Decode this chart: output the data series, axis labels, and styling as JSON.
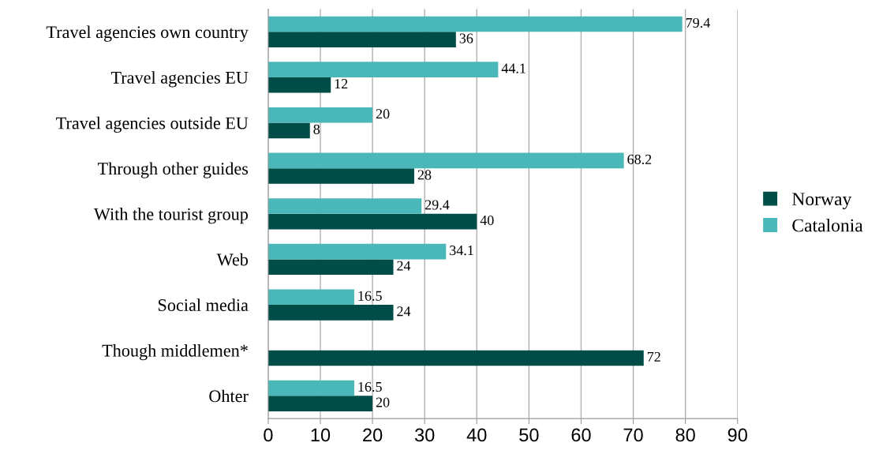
{
  "chart_data": {
    "type": "bar",
    "orientation": "horizontal",
    "categories": [
      "Travel agencies own country",
      "Travel agencies EU",
      "Travel agencies outside EU",
      "Through other guides",
      "With the tourist group",
      "Web",
      "Social media",
      "Though middlemen*",
      "Ohter"
    ],
    "series": [
      {
        "name": "Norway",
        "color": "#004d47",
        "values": [
          36,
          12,
          8,
          28,
          40,
          24,
          24,
          72,
          20
        ]
      },
      {
        "name": "Catalonia",
        "color": "#4ab8b8",
        "values": [
          79.4,
          44.1,
          20,
          68.2,
          29.4,
          34.1,
          16.5,
          null,
          16.5
        ]
      }
    ],
    "xlim": [
      0,
      90
    ],
    "xticks": [
      0,
      10,
      20,
      30,
      40,
      50,
      60,
      70,
      80,
      90
    ],
    "grid": "x",
    "legend": "right",
    "data_labels": true
  }
}
